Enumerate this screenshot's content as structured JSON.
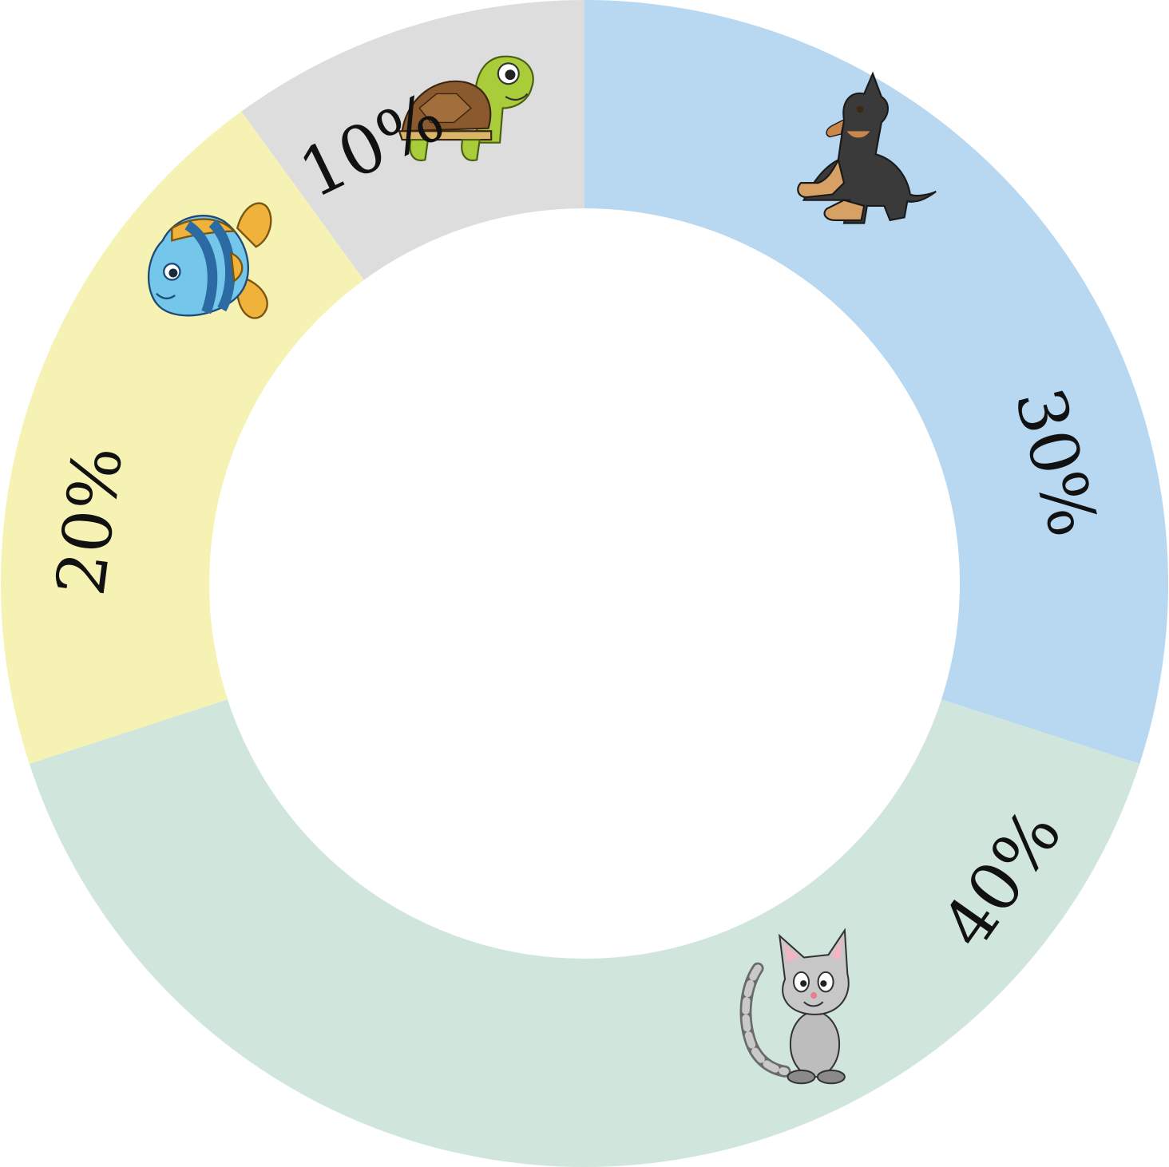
{
  "chart_data": {
    "type": "pie",
    "donut": true,
    "title": "",
    "legend": "none",
    "categories": [
      "dog",
      "cat",
      "fish",
      "turtle"
    ],
    "values": [
      30,
      40,
      20,
      10
    ],
    "labels": [
      "30%",
      "40%",
      "20%",
      "10%"
    ],
    "icons": [
      "dog-icon",
      "cat-icon",
      "fish-icon",
      "turtle-icon"
    ],
    "colors": [
      "#b7d8f0",
      "#d0e6dd",
      "#f5f2b4",
      "#dddddd"
    ]
  }
}
